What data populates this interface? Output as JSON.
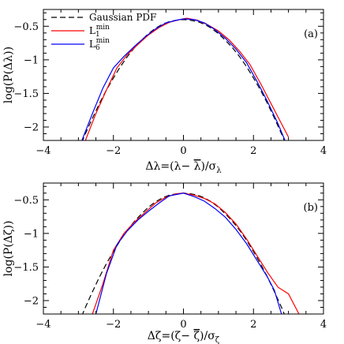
{
  "chart_data": [
    {
      "panel_label": "(a)",
      "type": "line",
      "xlabel": "Δλ=(λ− λ̄)/σλ",
      "xlabel_parts": {
        "main": "Δλ=(λ− ",
        "bar": "λ",
        "mid": ")/σ",
        "sub": "λ"
      },
      "ylabel": "log(P(Δλ))",
      "xlim": [
        -4,
        4
      ],
      "ylim": [
        -2.2,
        -0.25
      ],
      "xticks": [
        -4,
        -2,
        0,
        2,
        4
      ],
      "yticks": [
        -0.5,
        -1,
        -1.5,
        -2
      ],
      "xtick_labels": [
        "−4",
        "−2",
        "0",
        "2",
        "4"
      ],
      "ytick_labels": [
        "−0.5",
        "−1",
        "−1.5",
        "−2"
      ],
      "legend_position": "top-left",
      "legend": [
        {
          "label": "Gaussian PDF",
          "color": "#000000",
          "dash": true
        },
        {
          "label": "L",
          "sub": "1",
          "sup": "min",
          "color": "#ff0000",
          "dash": false
        },
        {
          "label": "L",
          "sub": "6",
          "sup": "min",
          "color": "#0000ff",
          "dash": false
        }
      ],
      "series": [
        {
          "name": "Gaussian PDF",
          "color": "#000000",
          "dash": true,
          "x": [
            -3.0,
            -2.8,
            -2.6,
            -2.4,
            -2.2,
            -2.0,
            -1.8,
            -1.6,
            -1.4,
            -1.2,
            -1.0,
            -0.8,
            -0.6,
            -0.4,
            -0.2,
            0.0,
            0.2,
            0.4,
            0.6,
            0.8,
            1.0,
            1.2,
            1.4,
            1.6,
            1.8,
            2.0,
            2.2,
            2.4,
            2.6,
            2.8,
            3.0
          ],
          "y": [
            -2.35,
            -2.1,
            -1.87,
            -1.65,
            -1.45,
            -1.27,
            -1.1,
            -0.95,
            -0.82,
            -0.71,
            -0.61,
            -0.53,
            -0.47,
            -0.43,
            -0.41,
            -0.4,
            -0.41,
            -0.43,
            -0.47,
            -0.53,
            -0.61,
            -0.71,
            -0.82,
            -0.95,
            -1.1,
            -1.27,
            -1.45,
            -1.65,
            -1.87,
            -2.1,
            -2.35
          ]
        },
        {
          "name": "L1min",
          "color": "#ff0000",
          "dash": false,
          "x": [
            -2.8,
            -2.5,
            -2.2,
            -1.9,
            -1.6,
            -1.3,
            -1.0,
            -0.7,
            -0.4,
            -0.1,
            0.1,
            0.4,
            0.7,
            1.0,
            1.3,
            1.6,
            1.9,
            2.2,
            2.5,
            2.8,
            3.0
          ],
          "y": [
            -2.2,
            -1.8,
            -1.45,
            -1.12,
            -0.92,
            -0.77,
            -0.63,
            -0.52,
            -0.44,
            -0.4,
            -0.38,
            -0.41,
            -0.48,
            -0.57,
            -0.7,
            -0.87,
            -1.07,
            -1.35,
            -1.65,
            -1.95,
            -2.15
          ]
        },
        {
          "name": "L6min",
          "color": "#0000ff",
          "dash": false,
          "x": [
            -2.9,
            -2.6,
            -2.3,
            -2.0,
            -1.7,
            -1.4,
            -1.1,
            -0.8,
            -0.5,
            -0.2,
            0.0,
            0.3,
            0.6,
            0.9,
            1.2,
            1.5,
            1.8,
            2.1,
            2.4,
            2.7,
            2.9
          ],
          "y": [
            -2.2,
            -1.8,
            -1.42,
            -1.12,
            -0.95,
            -0.8,
            -0.66,
            -0.54,
            -0.45,
            -0.41,
            -0.39,
            -0.4,
            -0.45,
            -0.55,
            -0.68,
            -0.84,
            -1.04,
            -1.32,
            -1.62,
            -1.95,
            -2.2
          ]
        }
      ]
    },
    {
      "panel_label": "(b)",
      "type": "line",
      "xlabel": "Δζ=(ζ− ζ̄)/σζ",
      "xlabel_parts": {
        "main": "Δζ=(ζ− ",
        "bar": "ζ",
        "mid": ")/σ",
        "sub": "ζ"
      },
      "ylabel": "log(P(Δζ))",
      "xlim": [
        -4,
        4
      ],
      "ylim": [
        -2.2,
        -0.25
      ],
      "xticks": [
        -4,
        -2,
        0,
        2,
        4
      ],
      "yticks": [
        -0.5,
        -1,
        -1.5,
        -2
      ],
      "xtick_labels": [
        "−4",
        "−2",
        "0",
        "2",
        "4"
      ],
      "ytick_labels": [
        "−0.5",
        "−1",
        "−1.5",
        "−2"
      ],
      "series": [
        {
          "name": "Gaussian PDF",
          "color": "#000000",
          "dash": true,
          "x": [
            -3.0,
            -2.8,
            -2.6,
            -2.4,
            -2.2,
            -2.0,
            -1.8,
            -1.6,
            -1.4,
            -1.2,
            -1.0,
            -0.8,
            -0.6,
            -0.4,
            -0.2,
            0.0,
            0.2,
            0.4,
            0.6,
            0.8,
            1.0,
            1.2,
            1.4,
            1.6,
            1.8,
            2.0,
            2.2,
            2.4,
            2.6,
            2.8,
            3.0
          ],
          "y": [
            -2.35,
            -2.1,
            -1.87,
            -1.65,
            -1.45,
            -1.27,
            -1.1,
            -0.95,
            -0.82,
            -0.71,
            -0.61,
            -0.53,
            -0.47,
            -0.43,
            -0.41,
            -0.4,
            -0.41,
            -0.43,
            -0.47,
            -0.53,
            -0.61,
            -0.71,
            -0.82,
            -0.95,
            -1.1,
            -1.27,
            -1.45,
            -1.65,
            -1.87,
            -2.1,
            -2.35
          ]
        },
        {
          "name": "L1min",
          "color": "#ff0000",
          "dash": false,
          "x": [
            -2.6,
            -2.3,
            -2.0,
            -1.7,
            -1.4,
            -1.1,
            -0.8,
            -0.5,
            -0.2,
            0.0,
            0.3,
            0.6,
            0.9,
            1.2,
            1.5,
            1.8,
            2.1,
            2.4,
            2.7,
            3.0,
            3.3
          ],
          "y": [
            -2.2,
            -1.75,
            -1.25,
            -1.0,
            -0.83,
            -0.69,
            -0.55,
            -0.46,
            -0.41,
            -0.4,
            -0.43,
            -0.48,
            -0.56,
            -0.69,
            -0.86,
            -1.08,
            -1.33,
            -1.58,
            -1.8,
            -1.9,
            -2.2
          ]
        },
        {
          "name": "L6min",
          "color": "#0000ff",
          "dash": false,
          "x": [
            -2.5,
            -2.2,
            -1.9,
            -1.6,
            -1.3,
            -1.0,
            -0.7,
            -0.4,
            -0.1,
            0.0,
            0.3,
            0.6,
            0.9,
            1.2,
            1.5,
            1.8,
            2.1,
            2.4,
            2.6,
            2.8
          ],
          "y": [
            -2.2,
            -1.6,
            -1.17,
            -0.96,
            -0.8,
            -0.67,
            -0.55,
            -0.44,
            -0.41,
            -0.4,
            -0.45,
            -0.52,
            -0.63,
            -0.76,
            -0.94,
            -1.15,
            -1.4,
            -1.65,
            -1.85,
            -2.2
          ]
        }
      ]
    }
  ]
}
